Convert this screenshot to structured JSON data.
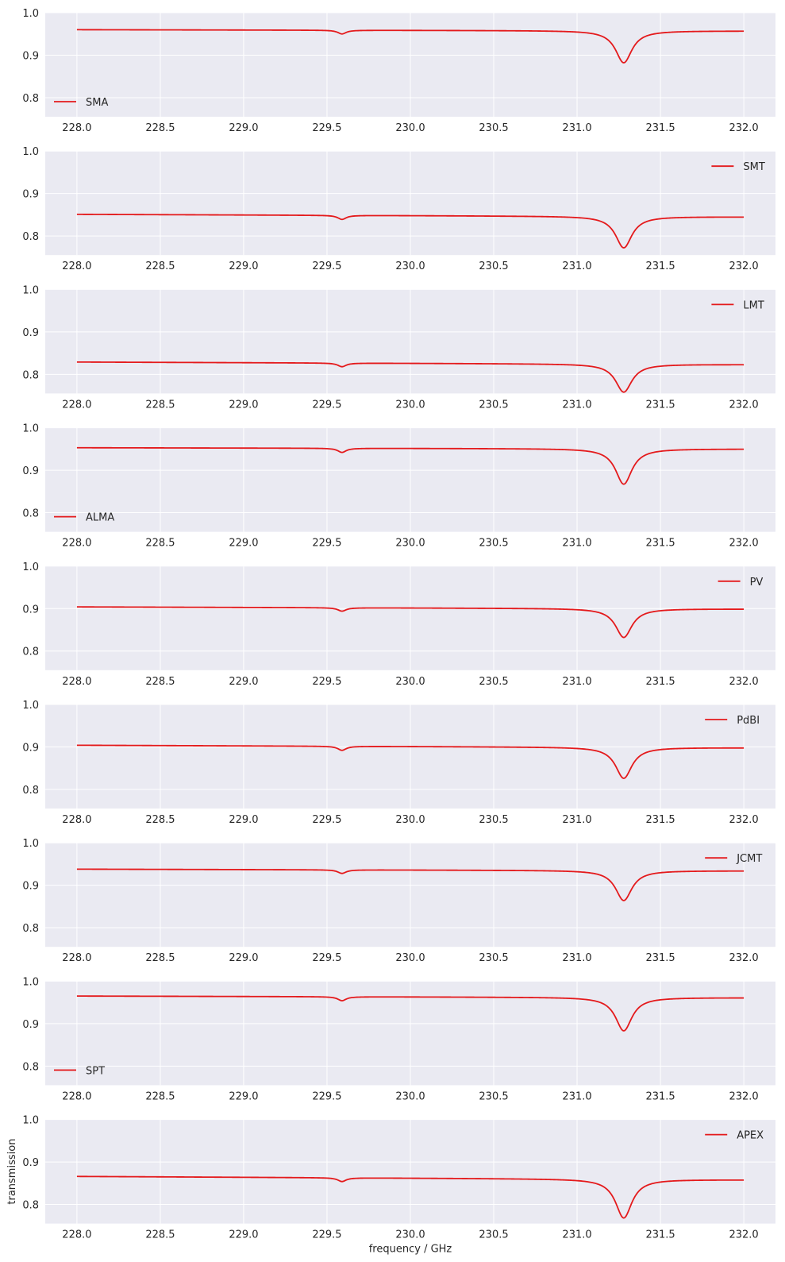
{
  "chart_data": [
    {
      "type": "line",
      "series": [
        {
          "name": "SMA",
          "baseline": [
            0.96,
            0.957
          ],
          "dips": [
            {
              "x": 229.59,
              "min": 0.95
            },
            {
              "x": 231.28,
              "min": 0.882
            }
          ]
        }
      ],
      "legend": "lower-left"
    },
    {
      "type": "line",
      "series": [
        {
          "name": "SMT",
          "baseline": [
            0.851,
            0.845
          ],
          "dips": [
            {
              "x": 229.59,
              "min": 0.839
            },
            {
              "x": 231.28,
              "min": 0.772
            }
          ]
        }
      ],
      "legend": "upper-right"
    },
    {
      "type": "line",
      "series": [
        {
          "name": "LMT",
          "baseline": [
            0.829,
            0.823
          ],
          "dips": [
            {
              "x": 229.59,
              "min": 0.818
            },
            {
              "x": 231.28,
              "min": 0.758
            }
          ]
        }
      ],
      "legend": "upper-right"
    },
    {
      "type": "line",
      "series": [
        {
          "name": "ALMA",
          "baseline": [
            0.953,
            0.95
          ],
          "dips": [
            {
              "x": 229.59,
              "min": 0.942
            },
            {
              "x": 231.28,
              "min": 0.867
            }
          ]
        }
      ],
      "legend": "lower-left"
    },
    {
      "type": "line",
      "series": [
        {
          "name": "PV",
          "baseline": [
            0.904,
            0.899
          ],
          "dips": [
            {
              "x": 229.59,
              "min": 0.894
            },
            {
              "x": 231.28,
              "min": 0.832
            }
          ]
        }
      ],
      "legend": "upper-right"
    },
    {
      "type": "line",
      "series": [
        {
          "name": "PdBI",
          "baseline": [
            0.904,
            0.898
          ],
          "dips": [
            {
              "x": 229.59,
              "min": 0.892
            },
            {
              "x": 231.28,
              "min": 0.826
            }
          ]
        }
      ],
      "legend": "upper-right"
    },
    {
      "type": "line",
      "series": [
        {
          "name": "JCMT",
          "baseline": [
            0.938,
            0.934
          ],
          "dips": [
            {
              "x": 229.59,
              "min": 0.928
            },
            {
              "x": 231.28,
              "min": 0.864
            }
          ]
        }
      ],
      "legend": "upper-right"
    },
    {
      "type": "line",
      "series": [
        {
          "name": "SPT",
          "baseline": [
            0.965,
            0.961
          ],
          "dips": [
            {
              "x": 229.59,
              "min": 0.954
            },
            {
              "x": 231.28,
              "min": 0.883
            }
          ]
        }
      ],
      "legend": "lower-left"
    },
    {
      "type": "line",
      "series": [
        {
          "name": "APEX",
          "baseline": [
            0.866,
            0.858
          ],
          "dips": [
            {
              "x": 229.59,
              "min": 0.854
            },
            {
              "x": 231.28,
              "min": 0.768
            }
          ]
        }
      ],
      "legend": "upper-right"
    }
  ],
  "axes": {
    "xlabel": "frequency / GHz",
    "ylabel": "transmission",
    "xlim": [
      227.81,
      232.19
    ],
    "ylim": [
      0.755,
      1.0
    ],
    "xticks": [
      "228.0",
      "228.5",
      "229.0",
      "229.5",
      "230.0",
      "230.5",
      "231.0",
      "231.5",
      "232.0"
    ],
    "yticks": [
      "0.8",
      "0.9",
      "1.0"
    ],
    "data_range": [
      228.0,
      232.0
    ],
    "grid": true
  },
  "colors": {
    "line": "#e41a1c",
    "panel_bg": "#eaeaf2",
    "grid": "#ffffff",
    "text": "#262626"
  }
}
